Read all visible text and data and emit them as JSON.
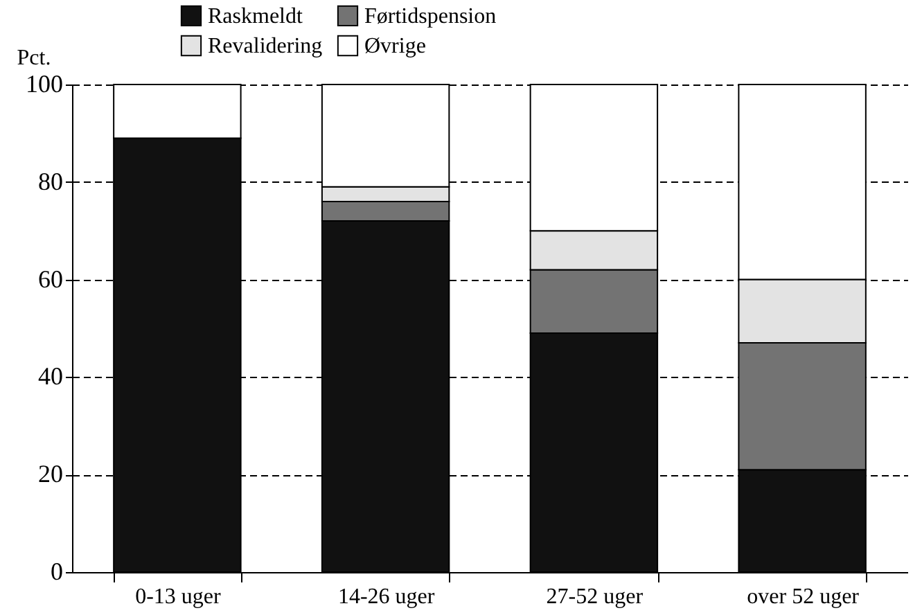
{
  "chart_data": {
    "type": "bar",
    "stacked": true,
    "ylabel": "Pct.",
    "categories": [
      "0-13 uger",
      "14-26 uger",
      "27-52 uger",
      "over 52 uger"
    ],
    "series": [
      {
        "name": "Raskmeldt",
        "color": "#111111",
        "values": [
          89,
          72,
          49,
          21
        ]
      },
      {
        "name": "Førtidspension",
        "color": "#737373",
        "values": [
          0,
          4,
          13,
          26
        ]
      },
      {
        "name": "Revalidering",
        "color": "#e3e3e3",
        "values": [
          0,
          3,
          8,
          13
        ]
      },
      {
        "name": "Øvrige",
        "color": "#ffffff",
        "values": [
          11,
          21,
          30,
          40
        ]
      }
    ],
    "ylim": [
      0,
      100
    ],
    "yticks": [
      0,
      20,
      40,
      60,
      80,
      100
    ],
    "grid": "y",
    "legend": "top left"
  }
}
